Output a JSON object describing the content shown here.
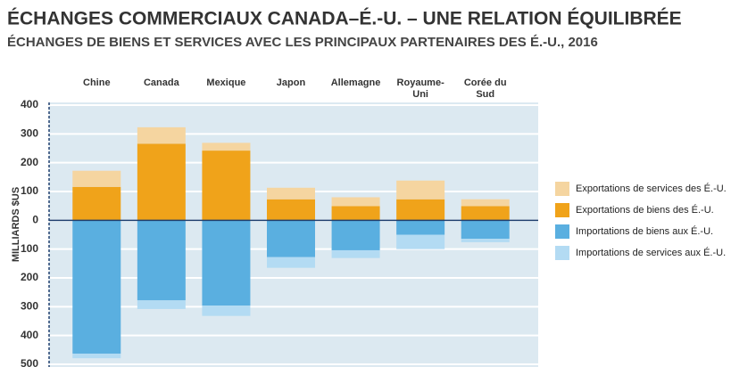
{
  "chart_data": {
    "type": "stacked_bar",
    "title": "ÉCHANGES COMMERCIAUX CANADA–É.-U. – UNE RELATION ÉQUILIBRÉE",
    "subtitle": "ÉCHANGES DE BIENS ET SERVICES AVEC LES PRINCIPAUX PARTENAIRES DES É.-U., 2016",
    "y_label": "MILLIARDS $US",
    "categories": [
      "Chine",
      "Canada",
      "Mexique",
      "Japon",
      "Allemagne",
      "Royaume-Uni",
      "Corée du Sud"
    ],
    "series": [
      {
        "name": "Exportations de services des É.-U.",
        "color": "#f5d5a0",
        "values": [
          56,
          57,
          27,
          40,
          31,
          65,
          24
        ]
      },
      {
        "name": "Exportations de biens des É.-U.",
        "color": "#f0a31a",
        "values": [
          116,
          266,
          242,
          73,
          49,
          73,
          49
        ]
      },
      {
        "name": "Importations de biens aux É.-U.",
        "color": "#5aafe0",
        "values": [
          -463,
          -278,
          -296,
          -128,
          -104,
          -50,
          -64
        ]
      },
      {
        "name": "Importations de services aux É.-U.",
        "color": "#b3dbf3",
        "values": [
          -16,
          -30,
          -36,
          -37,
          -27,
          -50,
          -12
        ]
      }
    ],
    "ylim": [
      -500,
      400
    ],
    "yticks": [
      400,
      300,
      200,
      100,
      0,
      {
        "value": -100,
        "label": "100"
      },
      {
        "value": -200,
        "label": "200"
      },
      {
        "value": -300,
        "label": "300"
      },
      {
        "value": -400,
        "label": "400"
      },
      {
        "value": -500,
        "label": "500"
      }
    ],
    "grid": true
  }
}
